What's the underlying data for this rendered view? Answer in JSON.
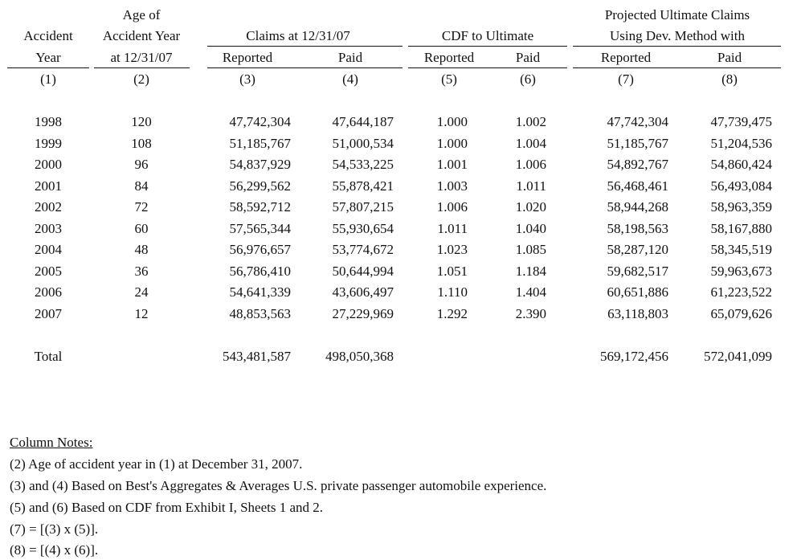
{
  "header": {
    "acc_year": [
      "Accident",
      "Year"
    ],
    "age": [
      "Age of",
      "Accident Year",
      "at 12/31/07"
    ],
    "claims_group": "Claims at 12/31/07",
    "cdf_group": "CDF to Ultimate",
    "proj_group": [
      "Projected Ultimate Claims",
      "Using Dev. Method with"
    ],
    "sub": [
      "Reported",
      "Paid",
      "Reported",
      "Paid",
      "Reported",
      "Paid"
    ],
    "nums": [
      "(1)",
      "(2)",
      "(3)",
      "(4)",
      "(5)",
      "(6)",
      "(7)",
      "(8)"
    ]
  },
  "rows": [
    [
      "1998",
      "120",
      "47,742,304",
      "47,644,187",
      "1.000",
      "1.002",
      "47,742,304",
      "47,739,475"
    ],
    [
      "1999",
      "108",
      "51,185,767",
      "51,000,534",
      "1.000",
      "1.004",
      "51,185,767",
      "51,204,536"
    ],
    [
      "2000",
      "96",
      "54,837,929",
      "54,533,225",
      "1.001",
      "1.006",
      "54,892,767",
      "54,860,424"
    ],
    [
      "2001",
      "84",
      "56,299,562",
      "55,878,421",
      "1.003",
      "1.011",
      "56,468,461",
      "56,493,084"
    ],
    [
      "2002",
      "72",
      "58,592,712",
      "57,807,215",
      "1.006",
      "1.020",
      "58,944,268",
      "58,963,359"
    ],
    [
      "2003",
      "60",
      "57,565,344",
      "55,930,654",
      "1.011",
      "1.040",
      "58,198,563",
      "58,167,880"
    ],
    [
      "2004",
      "48",
      "56,976,657",
      "53,774,672",
      "1.023",
      "1.085",
      "58,287,120",
      "58,345,519"
    ],
    [
      "2005",
      "36",
      "56,786,410",
      "50,644,994",
      "1.051",
      "1.184",
      "59,682,517",
      "59,963,673"
    ],
    [
      "2006",
      "24",
      "54,641,339",
      "43,606,497",
      "1.110",
      "1.404",
      "60,651,886",
      "61,223,522"
    ],
    [
      "2007",
      "12",
      "48,853,563",
      "27,229,969",
      "1.292",
      "2.390",
      "63,118,803",
      "65,079,626"
    ]
  ],
  "total": {
    "label": "Total",
    "reported": "543,481,587",
    "paid": "498,050,368",
    "proj_reported": "569,172,456",
    "proj_paid": "572,041,099"
  },
  "notes": {
    "title": "Column Notes:",
    "items": [
      "(2) Age of accident year in (1) at December 31, 2007.",
      "(3) and (4) Based on Best's Aggregates & Averages U.S. private passenger automobile experience.",
      "(5) and (6) Based on CDF from Exhibit I, Sheets 1 and 2.",
      "(7) = [(3) x (5)].",
      "(8) = [(4) x (6)]."
    ]
  }
}
